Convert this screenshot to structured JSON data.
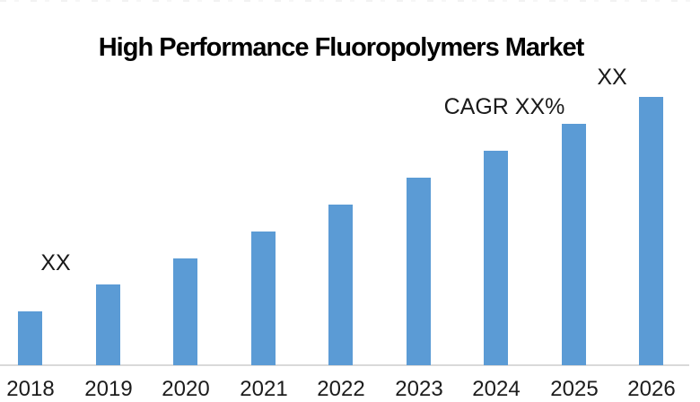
{
  "page": {
    "background": "#FFFFFF"
  },
  "chart_data": {
    "type": "bar",
    "title": "High Performance Fluoropolymers Market",
    "xlabel": "",
    "ylabel": "",
    "categories": [
      "2018",
      "2019",
      "2020",
      "2021",
      "2022",
      "2023",
      "2024",
      "2025",
      "2026"
    ],
    "values_relative": [
      2,
      3,
      4,
      5,
      6,
      7,
      8,
      9,
      10
    ],
    "value_axis_visible": false,
    "value_labels_masked": true,
    "gridlines": false,
    "legend": false,
    "bar_color": "#5B9BD5",
    "axis_line_color": "#D9D9D9",
    "annotations": [
      {
        "text": "XX",
        "anchor": "first-bar-2018",
        "position": "above-right of 2018 bar"
      },
      {
        "text": "CAGR XX%",
        "anchor": "trend",
        "position": "upper area above 2024 bar"
      },
      {
        "text": "XX",
        "anchor": "last-bar-2026",
        "position": "above 2026 bar"
      }
    ]
  }
}
